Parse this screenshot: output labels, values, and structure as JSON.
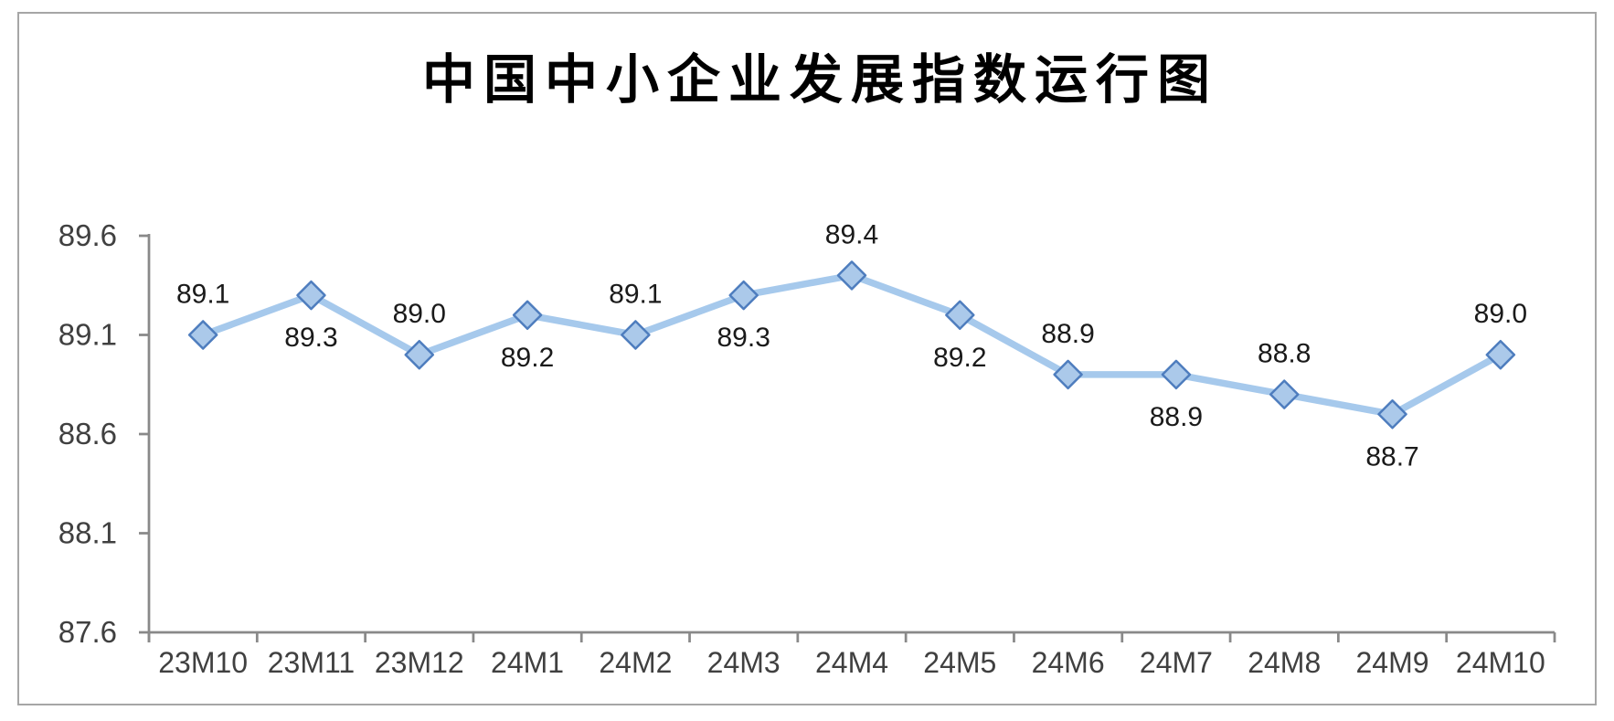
{
  "chart_data": {
    "type": "line",
    "title": "中国中小企业发展指数运行图",
    "categories": [
      "23M10",
      "23M11",
      "23M12",
      "24M1",
      "24M2",
      "24M3",
      "24M4",
      "24M5",
      "24M6",
      "24M7",
      "24M8",
      "24M9",
      "24M10"
    ],
    "values": [
      89.1,
      89.3,
      89.0,
      89.2,
      89.1,
      89.3,
      89.4,
      89.2,
      88.9,
      88.9,
      88.8,
      88.7,
      89.0
    ],
    "data_labels": [
      "89.1",
      "89.3",
      "89.0",
      "89.2",
      "89.1",
      "89.3",
      "89.4",
      "89.2",
      "88.9",
      "88.9",
      "88.8",
      "88.7",
      "89.0"
    ],
    "label_positions": [
      "above",
      "below",
      "above",
      "below",
      "above",
      "below",
      "above",
      "below",
      "above",
      "below",
      "above",
      "below",
      "above"
    ],
    "y_ticks": [
      "89.6",
      "89.1",
      "88.6",
      "88.1",
      "87.6"
    ],
    "ylim": [
      87.6,
      89.6
    ],
    "xlabel": "",
    "ylabel": "",
    "grid": false,
    "legend": "none",
    "marker_shape": "diamond",
    "colors": {
      "line": "#A6C9EC",
      "marker_fill": "#ABC9EA",
      "marker_stroke": "#4E7DBE",
      "axis": "#898989",
      "frame_border": "#A6A6A6",
      "tick_label": "#404040",
      "data_label": "#1A1A1A",
      "title": "#000000",
      "background": "#FFFFFF"
    }
  }
}
